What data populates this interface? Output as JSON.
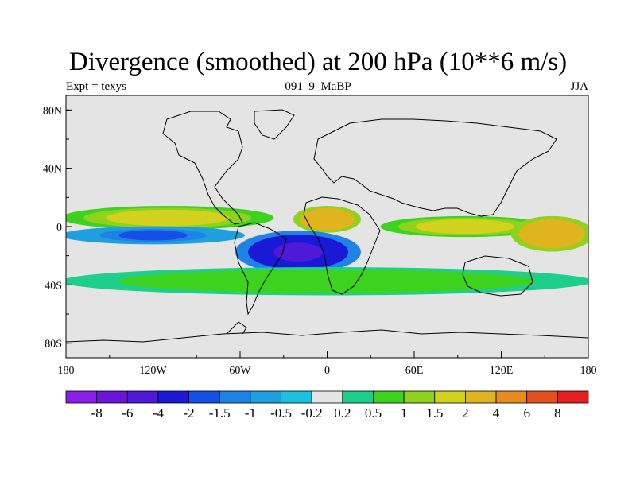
{
  "figure": {
    "title": "Divergence (smoothed) at 200 hPa (10**6 m/s)",
    "subtitle_left": "Expt = texys",
    "subtitle_center": "091_9_MaBP",
    "subtitle_right": "JJA"
  },
  "axes": {
    "lon_range": [
      -180,
      180
    ],
    "lat_range": [
      -90,
      90
    ],
    "x_ticks": [
      {
        "value": -180,
        "label": "180"
      },
      {
        "value": -120,
        "label": "120W"
      },
      {
        "value": -60,
        "label": "60W"
      },
      {
        "value": 0,
        "label": "0"
      },
      {
        "value": 60,
        "label": "60E"
      },
      {
        "value": 120,
        "label": "120E"
      },
      {
        "value": 180,
        "label": "180"
      }
    ],
    "y_ticks": [
      {
        "value": 80,
        "label": "80N"
      },
      {
        "value": 40,
        "label": "40N"
      },
      {
        "value": 0,
        "label": "0"
      },
      {
        "value": -40,
        "label": "40S"
      },
      {
        "value": -80,
        "label": "80S"
      }
    ]
  },
  "colorbar": {
    "colors": [
      "#8a1ee8",
      "#6a14dc",
      "#4e1ad8",
      "#1a1ad6",
      "#1450e6",
      "#1e82e6",
      "#1ea0e0",
      "#1ec0e0",
      "#e4e4e4",
      "#1ecf8c",
      "#3cd21e",
      "#8fd21e",
      "#d2d21e",
      "#e0b41e",
      "#e68c1e",
      "#e6501e",
      "#e61e1e"
    ],
    "labels": [
      "-8",
      "-6",
      "-4",
      "-2",
      "-1.5",
      "-1",
      "-0.5",
      "-0.2",
      "0.2",
      "0.5",
      "1",
      "1.5",
      "2",
      "4",
      "6",
      "8"
    ]
  },
  "chart_data": {
    "type": "heatmap",
    "title": "Divergence (smoothed) at 200 hPa (10**6 m/s)",
    "variable": "Divergence (smoothed) at 200 hPa",
    "units": "10**6 m/s",
    "season": "JJA",
    "experiment": "texys",
    "x_range": [
      -180,
      180
    ],
    "y_range": [
      -90,
      90
    ],
    "contour_levels": [
      -8,
      -6,
      -4,
      -2,
      -1.5,
      -1,
      -0.5,
      -0.2,
      0.2,
      0.5,
      1,
      1.5,
      2,
      4,
      6,
      8
    ],
    "features": [
      {
        "region": "equatorial Pacific band ~5N",
        "lon": [
          -180,
          -40
        ],
        "lat": [
          0,
          12
        ],
        "value": 2
      },
      {
        "region": "equatorial Pacific band ~5S",
        "lon": [
          -180,
          -60
        ],
        "lat": [
          -10,
          -2
        ],
        "value": -1.5
      },
      {
        "region": "tropical Africa",
        "lon": [
          -20,
          20
        ],
        "lat": [
          -2,
          12
        ],
        "value": 4
      },
      {
        "region": "Indian Ocean / Asia",
        "lon": [
          40,
          150
        ],
        "lat": [
          -5,
          5
        ],
        "value": 2
      },
      {
        "region": "western Pacific",
        "lon": [
          130,
          180
        ],
        "lat": [
          -15,
          5
        ],
        "value": 4
      },
      {
        "region": "South Atlantic / Africa",
        "lon": [
          -60,
          20
        ],
        "lat": [
          -30,
          -5
        ],
        "value": -4
      },
      {
        "region": "southern mid-latitudes",
        "lon": [
          -180,
          180
        ],
        "lat": [
          -45,
          -30
        ],
        "value": 1
      }
    ]
  }
}
